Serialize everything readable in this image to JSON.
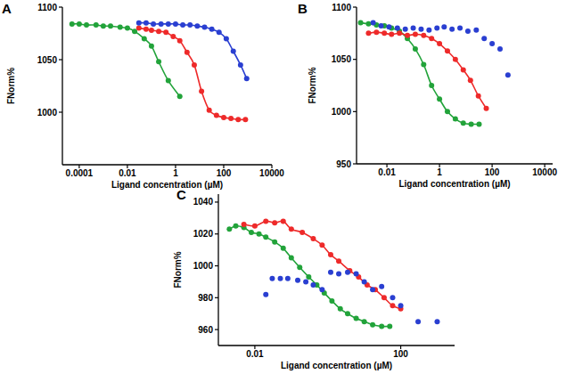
{
  "chart_data": [
    {
      "type": "scatter",
      "title": "A",
      "x_label": "Ligand concentration (µM)",
      "y_label": "FNorm%",
      "log": "x",
      "grid": false,
      "xlim": [
        2e-05,
        10000
      ],
      "xticks": [
        0.0001,
        0.01,
        1,
        100,
        10000
      ],
      "ylim": [
        950,
        1100
      ],
      "yticks": [
        1000,
        1050,
        1100
      ],
      "series": [
        {
          "color": "#22a33a",
          "marker": "circle",
          "line_style": "solid",
          "x": [
            5e-05,
            0.0001,
            0.0002,
            0.0005,
            0.001,
            0.002,
            0.005,
            0.01,
            0.02,
            0.05,
            0.1,
            0.2,
            0.5,
            1.5
          ],
          "values": [
            1084,
            1084,
            1083,
            1083,
            1082,
            1082,
            1081,
            1080,
            1077,
            1070,
            1063,
            1048,
            1030,
            1015
          ]
        },
        {
          "color": "#ee2a2a",
          "marker": "circle",
          "line_style": "solid",
          "x": [
            0.03,
            0.06,
            0.1,
            0.2,
            0.4,
            0.8,
            1.5,
            3,
            6,
            12,
            25,
            50,
            100,
            200,
            400,
            800
          ],
          "values": [
            1080,
            1079,
            1078,
            1077,
            1076,
            1072,
            1068,
            1057,
            1045,
            1020,
            1002,
            997,
            995,
            994,
            993,
            993
          ]
        },
        {
          "color": "#2a3fd1",
          "marker": "circle",
          "line_style": "solid",
          "x": [
            0.03,
            0.06,
            0.12,
            0.25,
            0.5,
            1,
            2,
            4,
            8,
            16,
            32,
            64,
            128,
            250,
            500,
            900
          ],
          "values": [
            1085,
            1085,
            1084,
            1084,
            1084,
            1084,
            1083,
            1083,
            1082,
            1081,
            1079,
            1076,
            1070,
            1058,
            1045,
            1032
          ]
        }
      ]
    },
    {
      "type": "scatter",
      "title": "B",
      "x_label": "Ligand concentration (µM)",
      "y_label": "FNorm%",
      "log": "x",
      "grid": false,
      "xlim": [
        0.0007,
        20000
      ],
      "xticks": [
        0.01,
        1,
        100,
        10000
      ],
      "ylim": [
        950,
        1100
      ],
      "yticks": [
        950,
        1000,
        1050,
        1100
      ],
      "series": [
        {
          "color": "#22a33a",
          "marker": "circle",
          "line_style": "solid",
          "x": [
            0.001,
            0.002,
            0.004,
            0.008,
            0.015,
            0.03,
            0.06,
            0.12,
            0.25,
            0.5,
            1,
            2,
            4,
            8,
            16,
            32
          ],
          "values": [
            1085,
            1084,
            1083,
            1082,
            1080,
            1077,
            1070,
            1060,
            1045,
            1025,
            1012,
            1000,
            993,
            989,
            988,
            988
          ]
        },
        {
          "color": "#ee2a2a",
          "marker": "circle",
          "line_style": "solid",
          "x": [
            0.002,
            0.004,
            0.008,
            0.015,
            0.03,
            0.06,
            0.12,
            0.25,
            0.5,
            1,
            2,
            4,
            8,
            15,
            30,
            60
          ],
          "values": [
            1075,
            1076,
            1075,
            1074,
            1075,
            1073,
            1074,
            1073,
            1070,
            1065,
            1058,
            1050,
            1040,
            1030,
            1015,
            1003
          ]
        },
        {
          "color": "#2a3fd1",
          "marker": "circle",
          "line_style": "none",
          "x": [
            0.003,
            0.006,
            0.012,
            0.025,
            0.05,
            0.1,
            0.2,
            0.4,
            0.8,
            1.5,
            3,
            6,
            12,
            25,
            50,
            100,
            200,
            400
          ],
          "values": [
            1085,
            1082,
            1081,
            1080,
            1079,
            1080,
            1079,
            1078,
            1080,
            1081,
            1079,
            1080,
            1077,
            1078,
            1070,
            1065,
            1060,
            1035
          ]
        }
      ]
    },
    {
      "type": "scatter",
      "title": "C",
      "x_label": "Ligand concentration (µM)",
      "y_label": "FNorm%",
      "log": "x",
      "grid": false,
      "xlim": [
        0.001,
        3000
      ],
      "xticks": [
        0.01,
        100
      ],
      "ylim": [
        950,
        1045
      ],
      "yticks": [
        960,
        980,
        1000,
        1020,
        1040
      ],
      "series": [
        {
          "color": "#22a33a",
          "marker": "circle",
          "line_style": "solid",
          "x": [
            0.002,
            0.003,
            0.005,
            0.008,
            0.013,
            0.02,
            0.035,
            0.06,
            0.1,
            0.17,
            0.3,
            0.5,
            0.8,
            1.3,
            2.2,
            3.5,
            6,
            10,
            17,
            30,
            50
          ],
          "values": [
            1023,
            1025,
            1024,
            1021,
            1020,
            1018,
            1015,
            1011,
            1005,
            999,
            993,
            988,
            983,
            978,
            973,
            970,
            967,
            965,
            963,
            962,
            962
          ]
        },
        {
          "color": "#ee2a2a",
          "marker": "circle",
          "line_style": "solid",
          "x": [
            0.005,
            0.01,
            0.02,
            0.035,
            0.06,
            0.1,
            0.2,
            0.4,
            0.7,
            1.2,
            2,
            4,
            7,
            12,
            20,
            35,
            60,
            100
          ],
          "values": [
            1026,
            1025,
            1028,
            1027,
            1028,
            1023,
            1021,
            1017,
            1013,
            1007,
            1003,
            997,
            993,
            988,
            985,
            980,
            975,
            973
          ]
        },
        {
          "color": "#2a3fd1",
          "marker": "circle",
          "line_style": "none",
          "x": [
            0.02,
            0.03,
            0.05,
            0.08,
            0.15,
            0.25,
            0.4,
            0.7,
            1.2,
            2,
            3.5,
            6,
            10,
            17,
            30,
            60,
            100,
            300,
            1000
          ],
          "values": [
            982,
            992,
            992,
            992,
            991,
            990,
            988,
            985,
            996,
            995,
            996,
            995,
            990,
            985,
            987,
            980,
            975,
            965,
            965
          ]
        }
      ]
    }
  ]
}
